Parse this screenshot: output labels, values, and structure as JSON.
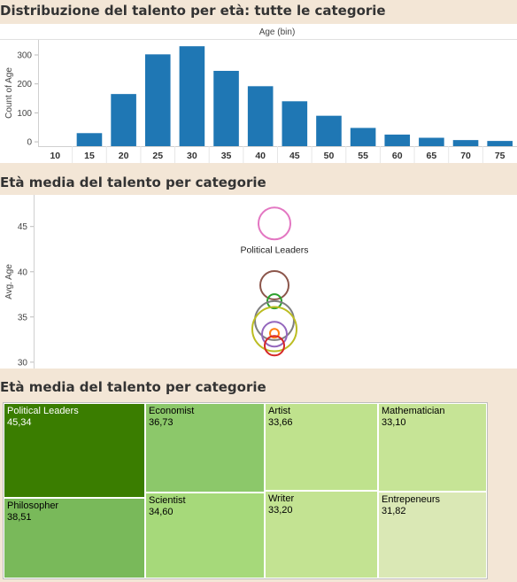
{
  "section1": {
    "title": "Distribuzione del talento per età: tutte le categorie"
  },
  "section2": {
    "title": "Età media del talento per categorie"
  },
  "section3": {
    "title": "Età media del talento per categorie"
  },
  "colors": {
    "bar": "#1f77b4",
    "background": "#f3e6d6",
    "panel": "#ffffff"
  },
  "chart_data": [
    {
      "type": "bar",
      "title": "Age (bin)",
      "xlabel": "Age (bin)",
      "ylabel": "Count of Age",
      "categories": [
        "10",
        "15",
        "20",
        "25",
        "30",
        "35",
        "40",
        "45",
        "50",
        "55",
        "60",
        "65",
        "70",
        "75"
      ],
      "values": [
        0,
        30,
        165,
        302,
        330,
        245,
        192,
        140,
        90,
        48,
        25,
        14,
        6,
        3
      ],
      "ylim": [
        -15,
        352
      ],
      "yticks": [
        0,
        100,
        200,
        300
      ],
      "grid": false
    },
    {
      "type": "scatter",
      "ylabel": "Avg. Age",
      "ylim": [
        29.3,
        48.5
      ],
      "yticks": [
        30,
        35,
        40,
        45
      ],
      "annotation": "Political Leaders",
      "points": [
        {
          "category": "Political Leaders",
          "y": 45.34,
          "color": "#e377c2",
          "size": 18
        },
        {
          "category": "Philosopher",
          "y": 38.51,
          "color": "#8c564b",
          "size": 16
        },
        {
          "category": "Economist",
          "y": 36.73,
          "color": "#2ca02c",
          "size": 8
        },
        {
          "category": "Scientist",
          "y": 34.6,
          "color": "#7f7f7f",
          "size": 22
        },
        {
          "category": "Artist",
          "y": 33.66,
          "color": "#bcbd22",
          "size": 25
        },
        {
          "category": "Mathematician",
          "y": 33.1,
          "color": "#9467bd",
          "size": 14
        },
        {
          "category": "Writer",
          "y": 33.2,
          "color": "#ff7f0e",
          "size": 5
        },
        {
          "category": "Entrepeneurs",
          "y": 31.82,
          "color": "#d62728",
          "size": 11
        }
      ]
    },
    {
      "type": "treemap",
      "items": [
        {
          "label": "Political Leaders",
          "value": "45,34",
          "color": "#3a7d00",
          "text_color": "#ffffff"
        },
        {
          "label": "Philosopher",
          "value": "38,51",
          "color": "#79b95a",
          "text_color": "#000000"
        },
        {
          "label": "Economist",
          "value": "36,73",
          "color": "#8cc86a",
          "text_color": "#000000"
        },
        {
          "label": "Scientist",
          "value": "34,60",
          "color": "#a6d97a",
          "text_color": "#000000"
        },
        {
          "label": "Artist",
          "value": "33,66",
          "color": "#bfe28d",
          "text_color": "#000000"
        },
        {
          "label": "Writer",
          "value": "33,20",
          "color": "#c3e392",
          "text_color": "#000000"
        },
        {
          "label": "Mathematician",
          "value": "33,10",
          "color": "#c6e496",
          "text_color": "#000000"
        },
        {
          "label": "Entrepeneurs",
          "value": "31,82",
          "color": "#dae8b5",
          "text_color": "#000000"
        }
      ]
    }
  ]
}
